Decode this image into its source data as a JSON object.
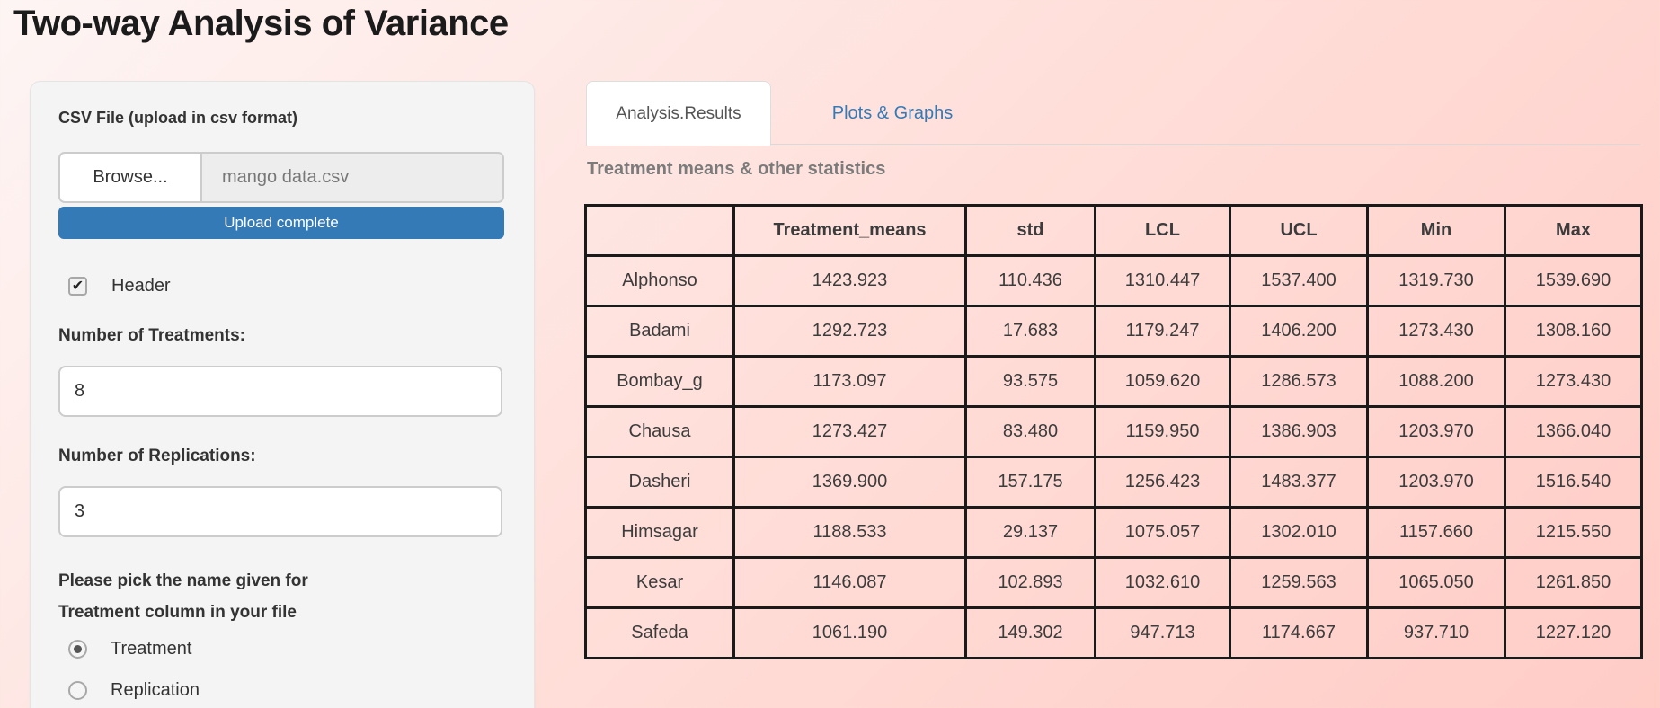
{
  "page": {
    "title": "Two-way Analysis of Variance"
  },
  "colors": {
    "accent_blue": "#337ab7",
    "tab_link_blue": "#337ab7",
    "table_border": "#1a1a1a",
    "page_pink": "#ffccc6",
    "panel_gray": "#f4f4f4"
  },
  "sidebar": {
    "csv_label": "CSV File (upload in csv format)",
    "browse_label": "Browse...",
    "filename": "mango data.csv",
    "upload_status": "Upload complete",
    "header_checkbox": {
      "label": "Header",
      "checked": true
    },
    "treatments_label": "Number of Treatments:",
    "treatments_value": "8",
    "replications_label": "Number of Replications:",
    "replications_value": "3",
    "pick_label": "Please pick the name given for Treatment column in your file",
    "radio_options": [
      {
        "label": "Treatment",
        "selected": true
      },
      {
        "label": "Replication",
        "selected": false
      }
    ]
  },
  "tabs": [
    {
      "label": "Analysis.Results",
      "active": true
    },
    {
      "label": "Plots & Graphs",
      "active": false
    }
  ],
  "main": {
    "section_heading": "Treatment means & other statistics"
  },
  "table": {
    "columns": [
      "",
      "Treatment_means",
      "std",
      "LCL",
      "UCL",
      "Min",
      "Max"
    ],
    "rows": [
      {
        "label": "Alphonso",
        "values": [
          "1423.923",
          "110.436",
          "1310.447",
          "1537.400",
          "1319.730",
          "1539.690"
        ]
      },
      {
        "label": "Badami",
        "values": [
          "1292.723",
          "17.683",
          "1179.247",
          "1406.200",
          "1273.430",
          "1308.160"
        ]
      },
      {
        "label": "Bombay_g",
        "values": [
          "1173.097",
          "93.575",
          "1059.620",
          "1286.573",
          "1088.200",
          "1273.430"
        ]
      },
      {
        "label": "Chausa",
        "values": [
          "1273.427",
          "83.480",
          "1159.950",
          "1386.903",
          "1203.970",
          "1366.040"
        ]
      },
      {
        "label": "Dasheri",
        "values": [
          "1369.900",
          "157.175",
          "1256.423",
          "1483.377",
          "1203.970",
          "1516.540"
        ]
      },
      {
        "label": "Himsagar",
        "values": [
          "1188.533",
          "29.137",
          "1075.057",
          "1302.010",
          "1157.660",
          "1215.550"
        ]
      },
      {
        "label": "Kesar",
        "values": [
          "1146.087",
          "102.893",
          "1032.610",
          "1259.563",
          "1065.050",
          "1261.850"
        ]
      },
      {
        "label": "Safeda",
        "values": [
          "1061.190",
          "149.302",
          "947.713",
          "1174.667",
          "937.710",
          "1227.120"
        ]
      }
    ]
  }
}
